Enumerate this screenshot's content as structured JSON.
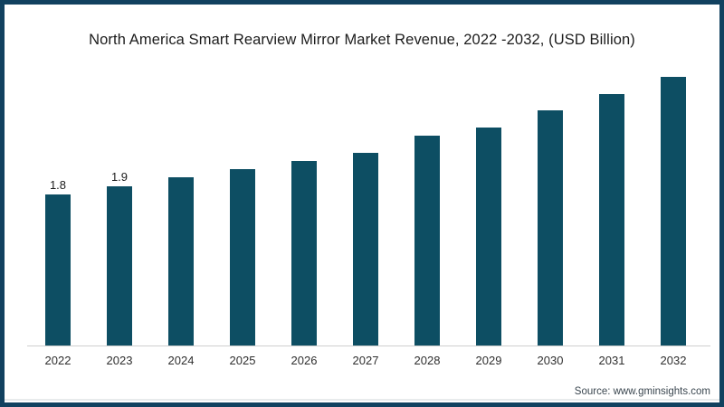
{
  "frame": {
    "border_color": "#11415f",
    "background_color": "#ffffff"
  },
  "title": "North America Smart Rearview Mirror Market Revenue, 2022 -2032, (USD Billion)",
  "source_note": "Source: www.gminsights.com",
  "chart_data": {
    "type": "bar",
    "title": "North America Smart Rearview Mirror Market Revenue, 2022 -2032, (USD Billion)",
    "categories": [
      "2022",
      "2023",
      "2024",
      "2025",
      "2026",
      "2027",
      "2028",
      "2029",
      "2030",
      "2031",
      "2032"
    ],
    "values": [
      1.8,
      1.9,
      2.0,
      2.1,
      2.2,
      2.3,
      2.5,
      2.6,
      2.8,
      3.0,
      3.2
    ],
    "bar_labels": [
      "1.8",
      "1.9",
      "",
      "",
      "",
      "",
      "",
      "",
      "",
      "",
      ""
    ],
    "xlabel": "",
    "ylabel": "",
    "unit": "USD Billion",
    "ylim": [
      0,
      3.4
    ],
    "grid": false,
    "legend": "none",
    "colors": {
      "bar": "#0d4e63",
      "axis_line": "#cfcfcf",
      "title_text": "#1c1c1c",
      "tick_text": "#2f2f2f",
      "source_text": "#3b4750"
    }
  }
}
